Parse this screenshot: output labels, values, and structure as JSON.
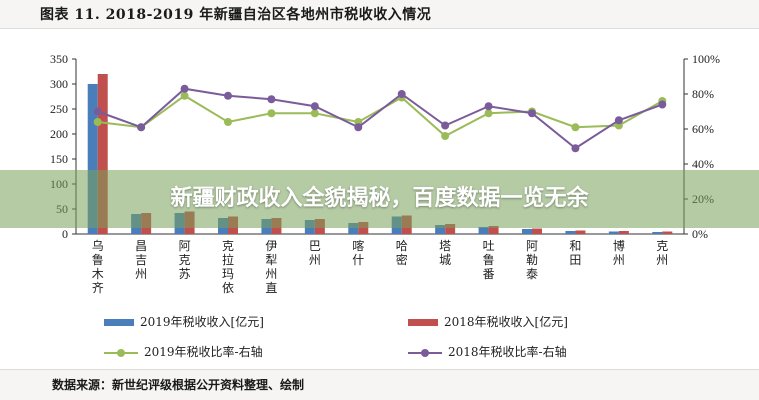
{
  "figure_title": "图表 11. 2018-2019 年新疆自治区各地州市税收收入情况",
  "source_note": "数据来源：新世纪评级根据公开资料整理、绘制",
  "banner_text": "新疆财政收入全貌揭秘，百度数据一览无余",
  "colors": {
    "bar_2019": "#4a7ebb",
    "bar_2018": "#c0504d",
    "line_2019": "#9bbb59",
    "line_2018": "#7a5c9a",
    "axis": "#333333"
  },
  "chart_data": {
    "type": "bar",
    "title": "",
    "categories": [
      "乌鲁木齐",
      "昌吉州",
      "阿克苏",
      "克拉玛依",
      "伊犁州直",
      "巴州",
      "喀什",
      "哈密",
      "塔城",
      "吐鲁番",
      "阿勒泰",
      "和田",
      "博州",
      "克州"
    ],
    "y_left": {
      "ylim": [
        0,
        350
      ],
      "ticks": [
        "0",
        "50",
        "100",
        "150",
        "200",
        "250",
        "300",
        "350"
      ]
    },
    "y_right": {
      "ylim": [
        0,
        100
      ],
      "ticks": [
        "0%",
        "20%",
        "40%",
        "60%",
        "80%",
        "100%"
      ]
    },
    "series": [
      {
        "name": "2019年税收收入[亿元]",
        "kind": "bar",
        "axis": "left",
        "values": [
          300,
          40,
          42,
          32,
          30,
          28,
          22,
          35,
          18,
          14,
          10,
          6,
          5,
          4
        ]
      },
      {
        "name": "2018年税收收入[亿元]",
        "kind": "bar",
        "axis": "left",
        "values": [
          320,
          42,
          45,
          35,
          32,
          30,
          24,
          37,
          20,
          16,
          11,
          7,
          6,
          5
        ]
      },
      {
        "name": "2019年税收比率-右轴",
        "kind": "line",
        "axis": "right",
        "values": [
          64,
          61,
          79,
          64,
          69,
          69,
          64,
          78,
          56,
          69,
          70,
          61,
          62,
          76
        ]
      },
      {
        "name": "2018年税收比率-右轴",
        "kind": "line",
        "axis": "right",
        "values": [
          70,
          61,
          83,
          79,
          77,
          73,
          61,
          80,
          62,
          73,
          69,
          49,
          65,
          74
        ]
      }
    ],
    "grid": false,
    "legend_position": "bottom"
  }
}
